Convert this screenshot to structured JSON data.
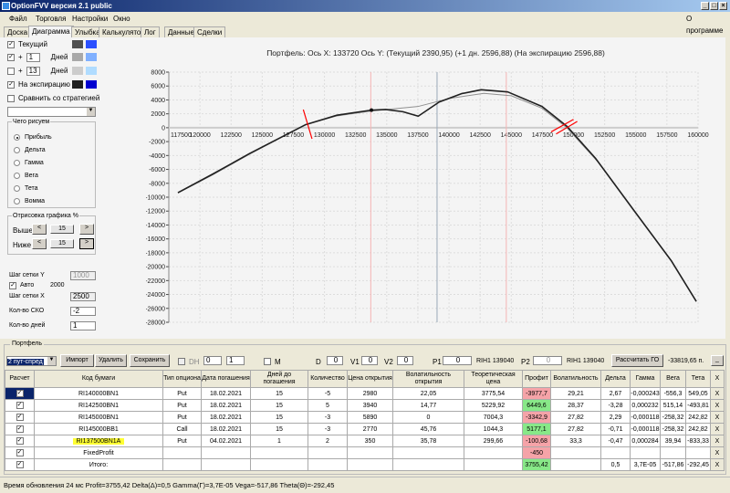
{
  "window": {
    "title": "OptionFVV версия 2.1 public"
  },
  "menu": {
    "items": [
      "Файл",
      "Торговля",
      "Настройки",
      "Окно"
    ],
    "about": "О программе"
  },
  "tabs": [
    "Доска",
    "Диаграмма",
    "Улыбка",
    "Калькулятор",
    "Лог",
    "Данные",
    "Сделки"
  ],
  "active_tab": "Диаграмма",
  "left": {
    "current": {
      "label": "Текущий",
      "checked": true,
      "colors": [
        "#505050",
        "#2b50ff"
      ]
    },
    "plus1": {
      "plus": "+",
      "value": "1",
      "unit": "Дней",
      "checked": true,
      "colors": [
        "#a8a8a8",
        "#80b0ff"
      ]
    },
    "plus13": {
      "plus": "+",
      "value": "13",
      "unit": "Дней",
      "checked": false,
      "colors": [
        "#cccccc",
        "#b0dcff"
      ]
    },
    "expiry": {
      "label": "На экспирацию",
      "checked": true,
      "colors": [
        "#202020",
        "#0000d0"
      ]
    },
    "compare": {
      "label": "Сравнить со стратегией",
      "checked": false
    },
    "what_group": "Чего рисуем",
    "what_options": [
      "Прибыль",
      "Дельта",
      "Гамма",
      "Вега",
      "Тета",
      "Вомма"
    ],
    "what_selected": "Прибыль",
    "draw_group": "Отрисовка графика %",
    "above_label": "Выше",
    "above_value": "15",
    "below_label": "Ниже",
    "below_value": "15",
    "prev": "<",
    "next": ">",
    "grid_y_label": "Шаг сетки Y",
    "grid_y_value": "1000",
    "auto_label": "Авто",
    "auto_value": "2000",
    "grid_x_label": "Шаг сетки X",
    "grid_x_value": "2500",
    "sko_label": "Кол-во СКО",
    "sko_value": "-2",
    "days_label": "Кол-во дней",
    "days_value": "1"
  },
  "chart_title": "Портфель: Ось X: 133720 Ось Y:  (Текущий 2390,95)  (+1 дн. 2596,88)  (На экспирацию 2596,88)",
  "chart_data": {
    "type": "line",
    "xlim": [
      117500,
      160000
    ],
    "ylim": [
      -28000,
      8000
    ],
    "xticks": [
      117500,
      120000,
      122500,
      125000,
      127500,
      130000,
      132500,
      135000,
      137500,
      140000,
      142500,
      145000,
      147500,
      150000,
      152500,
      155000,
      157500,
      160000
    ],
    "yticks": [
      8000,
      6000,
      4000,
      2000,
      0,
      -2000,
      -4000,
      -6000,
      -8000,
      -10000,
      -12000,
      -14000,
      -16000,
      -18000,
      -20000,
      -22000,
      -24000,
      -26000,
      -28000
    ],
    "grid": true,
    "vlines": {
      "cursor": 133720,
      "price": 139040,
      "sigma_high": 144600
    },
    "series": [
      {
        "color": "#909090",
        "x": [
          118230,
          121000,
          124000,
          128500,
          131000,
          133770,
          136000,
          137500,
          140000,
          142800,
          145000,
          147470,
          149460,
          152000,
          154810,
          157870,
          159860
        ],
        "y": [
          -9400,
          -6800,
          -3800,
          450,
          1700,
          2400,
          2800,
          3050,
          4200,
          4950,
          4600,
          2800,
          0,
          -5000,
          -11900,
          -19200,
          -25000
        ]
      },
      {
        "color": "#202020",
        "x": [
          118230,
          121000,
          124000,
          128500,
          131000,
          133770,
          134930,
          136300,
          137530,
          139210,
          141000,
          142580,
          144720,
          147470,
          149460,
          151750,
          154810,
          157870,
          159860
        ],
        "y": [
          -9350,
          -6700,
          -3700,
          450,
          1800,
          2530,
          2620,
          2300,
          1660,
          3700,
          4900,
          5460,
          5150,
          3060,
          220,
          -4370,
          -11800,
          -19200,
          -25000
        ]
      }
    ],
    "markers": [
      {
        "x": 133770,
        "y": 2530
      }
    ]
  },
  "portfolio": {
    "group": "Портфель",
    "strategy": "2 пут-спред",
    "import": "Импорт",
    "delete": "Удалить",
    "save": "Сохранить",
    "dh": "DH",
    "dh_v1": "0",
    "dh_v2": "1",
    "m": "M",
    "d_label": "D",
    "d": "0",
    "v1_label": "V1",
    "v1": "0",
    "v2_label": "V2",
    "v2": "0",
    "p1_label": "P1",
    "p1": "0",
    "p1_info": "RIH1 139040",
    "p2_label": "P2",
    "p2": "0",
    "p2_info": "RIH1 139040",
    "calc_go": "Рассчитать ГО",
    "go_value": "-33819,65 п.",
    "min": "_"
  },
  "table": {
    "headers": [
      "Расчет",
      "Код бумаги",
      "Тип опциона",
      "Дата погашения",
      "Дней до погашения",
      "Количество",
      "Цена открытия",
      "Волатильность открытия",
      "Теоретическая цена",
      "Профит",
      "Волатильность",
      "Дельта",
      "Гамма",
      "Вега",
      "Тета",
      "X"
    ],
    "rows": [
      {
        "code": "RI140000BN1",
        "type": "Put",
        "date": "18.02.2021",
        "days": "15",
        "qty": "-5",
        "price": "2980",
        "vol_open": "22,05",
        "theo": "3775,54",
        "profit": "-3977,7",
        "pstate": "neg",
        "vol": "29,21",
        "delta": "2,67",
        "gamma": "-0,000243",
        "vega": "-556,3",
        "theta": "549,05"
      },
      {
        "code": "RI142500BN1",
        "type": "Put",
        "date": "18.02.2021",
        "days": "15",
        "qty": "5",
        "price": "3940",
        "vol_open": "14,77",
        "theo": "5229,92",
        "profit": "6449,6",
        "pstate": "pos",
        "vol": "28,37",
        "delta": "-3,28",
        "gamma": "0,000232",
        "vega": "515,14",
        "theta": "-493,81"
      },
      {
        "code": "RI145000BN1",
        "type": "Put",
        "date": "18.02.2021",
        "days": "15",
        "qty": "-3",
        "price": "5890",
        "vol_open": "0",
        "theo": "7004,3",
        "profit": "-3342,9",
        "pstate": "neg",
        "vol": "27,82",
        "delta": "2,29",
        "gamma": "-0,000118",
        "vega": "-258,32",
        "theta": "242,82"
      },
      {
        "code": "RI145000BB1",
        "type": "Call",
        "date": "18.02.2021",
        "days": "15",
        "qty": "-3",
        "price": "2770",
        "vol_open": "45,76",
        "theo": "1044,3",
        "profit": "5177,1",
        "pstate": "pos",
        "vol": "27,82",
        "delta": "-0,71",
        "gamma": "-0,000118",
        "vega": "-258,32",
        "theta": "242,82"
      },
      {
        "code": "RI137500BN1A",
        "type": "Put",
        "date": "04.02.2021",
        "days": "1",
        "qty": "2",
        "price": "350",
        "vol_open": "35,78",
        "theo": "299,66",
        "profit": "-100,68",
        "pstate": "neg",
        "vol": "33,3",
        "delta": "-0,47",
        "gamma": "0,000284",
        "vega": "39,94",
        "theta": "-833,33",
        "highlight": true
      },
      {
        "code": "FixedProfit",
        "type": "",
        "date": "",
        "days": "",
        "qty": "",
        "price": "",
        "vol_open": "",
        "theo": "",
        "profit": "-450",
        "pstate": "neg",
        "vol": "",
        "delta": "",
        "gamma": "",
        "vega": "",
        "theta": ""
      },
      {
        "code": "Итого:",
        "type": "",
        "date": "",
        "days": "",
        "qty": "",
        "price": "",
        "vol_open": "",
        "theo": "",
        "profit": "3755,42",
        "pstate": "pos",
        "vol": "",
        "delta": "0,5",
        "gamma": "3,7E-05",
        "vega": "-517,86",
        "theta": "-292,45"
      }
    ],
    "remove": "X"
  },
  "status": "Время обновления 24 мс  Profit=3755,42 Delta(Δ)=0,5 Gamma(Γ)=3,7E-05 Vega=-517,86 Theta(Θ)=-292,45"
}
